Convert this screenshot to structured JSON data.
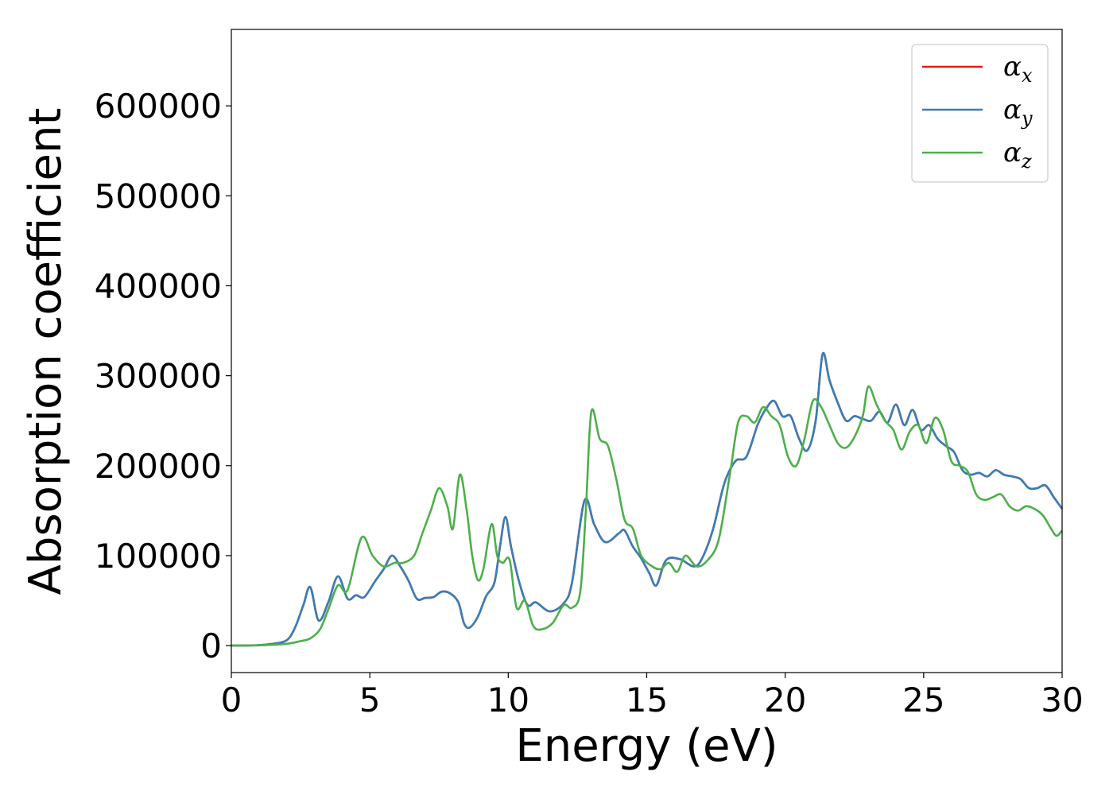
{
  "chart_data": {
    "type": "line",
    "xlabel": "Energy (eV)",
    "ylabel": "Absorption coefficient",
    "xlim": [
      0,
      30
    ],
    "ylim": [
      -30000,
      685000
    ],
    "xticks": [
      0,
      5,
      10,
      15,
      20,
      25,
      30
    ],
    "yticks": [
      0,
      100000,
      200000,
      300000,
      400000,
      500000,
      600000
    ],
    "grid": false,
    "legend_position": "top-right",
    "legend": [
      {
        "symbol": "α",
        "subscript": "x",
        "color": "#e41a1c"
      },
      {
        "symbol": "α",
        "subscript": "y",
        "color": "#377eb8"
      },
      {
        "symbol": "α",
        "subscript": "z",
        "color": "#4daf4a"
      }
    ],
    "series": [
      {
        "name": "αx",
        "color": "#e41a1c",
        "x": [
          0,
          1,
          1.5,
          2,
          2.3,
          2.6,
          2.85,
          3.15,
          3.5,
          3.85,
          4.2,
          4.5,
          4.8,
          5.2,
          5.5,
          5.8,
          6.1,
          6.4,
          6.7,
          7,
          7.3,
          7.6,
          7.9,
          8.2,
          8.4,
          8.6,
          8.9,
          9.2,
          9.5,
          9.7,
          9.9,
          10.1,
          10.4,
          10.7,
          11,
          11.5,
          12,
          12.3,
          12.75,
          13.1,
          13.5,
          14,
          14.2,
          14.5,
          14.8,
          15.1,
          15.35,
          15.7,
          16.2,
          16.7,
          17,
          17.4,
          17.8,
          18.2,
          18.6,
          19,
          19.3,
          19.6,
          19.9,
          20.2,
          20.5,
          20.8,
          21.1,
          21.35,
          21.6,
          21.9,
          22.2,
          22.5,
          22.8,
          23.1,
          23.4,
          23.7,
          24,
          24.3,
          24.6,
          24.9,
          25.2,
          25.5,
          25.8,
          26.1,
          26.4,
          26.7,
          27,
          27.3,
          27.6,
          27.9,
          28.2,
          28.5,
          28.8,
          29.1,
          29.4,
          29.7,
          30
        ],
        "y": [
          0,
          500,
          2000,
          6000,
          20000,
          45000,
          65000,
          28000,
          48000,
          77000,
          52000,
          56000,
          54000,
          72000,
          85000,
          100000,
          88000,
          72000,
          52000,
          53000,
          54000,
          60000,
          58000,
          48000,
          25000,
          20000,
          32000,
          55000,
          70000,
          110000,
          143000,
          110000,
          70000,
          45000,
          48000,
          38000,
          47000,
          70000,
          161000,
          135000,
          115000,
          125000,
          128000,
          110000,
          97000,
          80000,
          67000,
          95000,
          96000,
          88000,
          97000,
          130000,
          180000,
          205000,
          210000,
          245000,
          263000,
          272000,
          255000,
          255000,
          230000,
          217000,
          250000,
          324000,
          295000,
          270000,
          250000,
          255000,
          252000,
          250000,
          260000,
          248000,
          268000,
          245000,
          262000,
          240000,
          245000,
          230000,
          222000,
          215000,
          195000,
          190000,
          192000,
          188000,
          195000,
          190000,
          188000,
          185000,
          175000,
          175000,
          178000,
          165000,
          152000
        ]
      },
      {
        "name": "αy",
        "color": "#377eb8",
        "x": [
          0,
          1,
          1.5,
          2,
          2.3,
          2.6,
          2.85,
          3.15,
          3.5,
          3.85,
          4.2,
          4.5,
          4.8,
          5.2,
          5.5,
          5.8,
          6.1,
          6.4,
          6.7,
          7,
          7.3,
          7.6,
          7.9,
          8.2,
          8.4,
          8.6,
          8.9,
          9.2,
          9.5,
          9.7,
          9.9,
          10.1,
          10.4,
          10.7,
          11,
          11.5,
          12,
          12.3,
          12.75,
          13.1,
          13.5,
          14,
          14.2,
          14.5,
          14.8,
          15.1,
          15.35,
          15.7,
          16.2,
          16.7,
          17,
          17.4,
          17.8,
          18.2,
          18.6,
          19,
          19.3,
          19.6,
          19.9,
          20.2,
          20.5,
          20.8,
          21.1,
          21.35,
          21.6,
          21.9,
          22.2,
          22.5,
          22.8,
          23.1,
          23.4,
          23.7,
          24,
          24.3,
          24.6,
          24.9,
          25.2,
          25.5,
          25.8,
          26.1,
          26.4,
          26.7,
          27,
          27.3,
          27.6,
          27.9,
          28.2,
          28.5,
          28.8,
          29.1,
          29.4,
          29.7,
          30
        ],
        "y": [
          0,
          500,
          2000,
          6000,
          20000,
          45000,
          65000,
          28000,
          48000,
          77000,
          52000,
          56000,
          54000,
          72000,
          85000,
          100000,
          88000,
          72000,
          52000,
          53000,
          54000,
          60000,
          58000,
          48000,
          25000,
          20000,
          32000,
          55000,
          70000,
          110000,
          143000,
          110000,
          70000,
          45000,
          48000,
          38000,
          47000,
          70000,
          161000,
          135000,
          115000,
          125000,
          128000,
          110000,
          97000,
          80000,
          67000,
          95000,
          96000,
          88000,
          97000,
          130000,
          180000,
          205000,
          210000,
          245000,
          263000,
          272000,
          255000,
          255000,
          230000,
          217000,
          250000,
          324000,
          295000,
          270000,
          250000,
          255000,
          252000,
          250000,
          260000,
          248000,
          268000,
          245000,
          262000,
          240000,
          245000,
          230000,
          222000,
          215000,
          195000,
          190000,
          192000,
          188000,
          195000,
          190000,
          188000,
          185000,
          175000,
          175000,
          178000,
          165000,
          152000
        ]
      },
      {
        "name": "αz",
        "color": "#4daf4a",
        "x": [
          0,
          1,
          2,
          2.5,
          2.85,
          3.2,
          3.5,
          3.85,
          4.2,
          4.7,
          5.1,
          5.5,
          5.9,
          6.2,
          6.6,
          6.9,
          7.2,
          7.5,
          7.8,
          8.0,
          8.25,
          8.5,
          8.7,
          8.9,
          9.1,
          9.4,
          9.6,
          9.8,
          10.05,
          10.3,
          10.6,
          10.9,
          11.2,
          11.6,
          12,
          12.3,
          12.6,
          12.8,
          13.0,
          13.3,
          13.6,
          13.9,
          14.2,
          14.5,
          14.8,
          15.2,
          15.5,
          15.8,
          16.1,
          16.4,
          16.8,
          17.2,
          17.6,
          18.0,
          18.3,
          18.6,
          18.9,
          19.2,
          19.5,
          19.8,
          20.1,
          20.4,
          20.7,
          21.0,
          21.3,
          21.6,
          21.9,
          22.2,
          22.5,
          22.8,
          23.0,
          23.3,
          23.6,
          23.9,
          24.2,
          24.5,
          24.8,
          25.1,
          25.4,
          25.7,
          26.0,
          26.3,
          26.6,
          26.9,
          27.2,
          27.5,
          27.8,
          28.1,
          28.4,
          28.7,
          29.0,
          29.3,
          29.6,
          29.8,
          30
        ],
        "y": [
          0,
          300,
          2000,
          5000,
          8000,
          18000,
          40000,
          67000,
          62000,
          120000,
          100000,
          88000,
          92000,
          92000,
          100000,
          125000,
          150000,
          175000,
          155000,
          130000,
          190000,
          150000,
          100000,
          73000,
          85000,
          135000,
          100000,
          92000,
          95000,
          42000,
          50000,
          22000,
          18000,
          25000,
          45000,
          42000,
          60000,
          150000,
          260000,
          230000,
          222000,
          185000,
          140000,
          130000,
          100000,
          88000,
          85000,
          92000,
          82000,
          100000,
          88000,
          95000,
          118000,
          190000,
          248000,
          255000,
          248000,
          265000,
          255000,
          245000,
          210000,
          200000,
          230000,
          272000,
          265000,
          245000,
          225000,
          220000,
          232000,
          255000,
          288000,
          268000,
          250000,
          240000,
          218000,
          238000,
          245000,
          225000,
          253000,
          240000,
          205000,
          200000,
          193000,
          168000,
          162000,
          165000,
          168000,
          155000,
          150000,
          155000,
          152000,
          145000,
          130000,
          122000,
          128000
        ]
      }
    ]
  }
}
